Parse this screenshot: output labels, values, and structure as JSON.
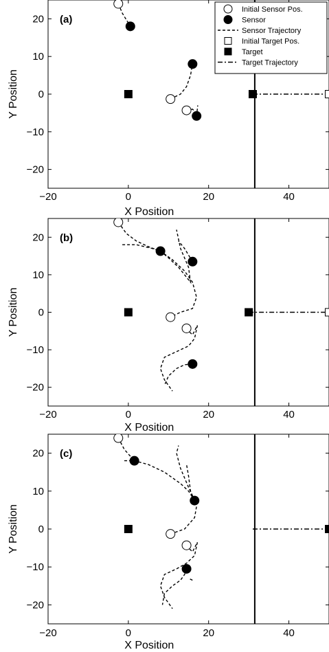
{
  "chart_data": [
    {
      "type": "scatter",
      "panel_label": "(a)",
      "xlabel": "X Position",
      "ylabel": "Y Position",
      "xlim": [
        -20,
        50
      ],
      "ylim": [
        -25,
        25
      ],
      "x_ticks": [
        -20,
        0,
        20,
        40
      ],
      "y_ticks": [
        -20,
        -10,
        0,
        10,
        20
      ],
      "x_tick_labels": [
        "−20",
        "0",
        "20",
        "40"
      ],
      "y_tick_labels": [
        "−20",
        "−10",
        "0",
        "10",
        "20"
      ],
      "vertical_line_x": 31.5,
      "legend": {
        "position": "top-right",
        "entries": [
          "Initial Sensor Pos.",
          "Sensor",
          "Sensor Trajectory",
          "Initial Target Pos.",
          "Target",
          "Target Trajectory"
        ]
      },
      "initial_sensors": [
        [
          -2.5,
          24
        ],
        [
          10.5,
          -1.3
        ],
        [
          14.5,
          -4.3
        ]
      ],
      "sensors": [
        [
          0.5,
          18
        ],
        [
          16,
          8
        ],
        [
          17,
          -5.8
        ]
      ],
      "sensor_trajectories": [
        [
          [
            -2.5,
            24
          ],
          [
            -1.5,
            21.5
          ],
          [
            0.5,
            18
          ]
        ],
        [
          [
            10.5,
            -1.3
          ],
          [
            13,
            0
          ],
          [
            14.5,
            2
          ],
          [
            15.5,
            5
          ],
          [
            16,
            8
          ]
        ],
        [
          [
            14.5,
            -4.3
          ],
          [
            16,
            -4
          ],
          [
            17,
            -5
          ],
          [
            17,
            -5.8
          ],
          [
            17.3,
            -3
          ]
        ]
      ],
      "initial_targets": [
        [
          50,
          0
        ]
      ],
      "targets": [
        [
          0,
          0
        ],
        [
          31,
          0
        ]
      ],
      "target_trajectories": [
        [
          [
            31,
            0
          ],
          [
            50,
            0
          ]
        ]
      ]
    },
    {
      "type": "scatter",
      "panel_label": "(b)",
      "xlabel": "X Position",
      "ylabel": "Y Position",
      "xlim": [
        -20,
        50
      ],
      "ylim": [
        -25,
        25
      ],
      "x_ticks": [
        -20,
        0,
        20,
        40
      ],
      "y_ticks": [
        -20,
        -10,
        0,
        10,
        20
      ],
      "x_tick_labels": [
        "−20",
        "0",
        "20",
        "40"
      ],
      "y_tick_labels": [
        "−20",
        "−10",
        "0",
        "10",
        "20"
      ],
      "vertical_line_x": 31.5,
      "initial_sensors": [
        [
          -2.5,
          24
        ],
        [
          10.5,
          -1.3
        ],
        [
          14.5,
          -4.3
        ]
      ],
      "sensors": [
        [
          8,
          16.3
        ],
        [
          16,
          13.5
        ],
        [
          16,
          -13.8
        ]
      ],
      "sensor_trajectories": [
        [
          [
            -2.5,
            24
          ],
          [
            -0.5,
            21
          ],
          [
            2,
            19
          ],
          [
            5,
            17.5
          ],
          [
            8,
            16.3
          ]
        ],
        [
          [
            -1.5,
            18
          ],
          [
            2,
            18
          ],
          [
            6,
            17
          ],
          [
            8,
            16.3
          ],
          [
            11,
            14
          ],
          [
            14,
            11
          ],
          [
            16,
            8
          ],
          [
            17,
            4
          ],
          [
            16,
            1
          ],
          [
            13,
            0
          ],
          [
            10.5,
            -1.3
          ]
        ],
        [
          [
            8,
            16.3
          ],
          [
            10,
            14.5
          ],
          [
            12.5,
            12
          ],
          [
            14,
            10
          ],
          [
            15.5,
            8
          ],
          [
            15,
            12
          ],
          [
            13,
            17
          ],
          [
            12,
            22
          ]
        ],
        [
          [
            16,
            13.5
          ],
          [
            14,
            17
          ],
          [
            12.5,
            19
          ]
        ],
        [
          [
            14.5,
            -4.3
          ],
          [
            15,
            -5
          ],
          [
            16,
            -6
          ],
          [
            17.2,
            -3.5
          ],
          [
            16.5,
            -7
          ],
          [
            15,
            -9
          ],
          [
            12,
            -10.5
          ],
          [
            9,
            -12
          ],
          [
            8,
            -15
          ],
          [
            9,
            -18
          ],
          [
            11,
            -21
          ]
        ],
        [
          [
            16,
            -13.8
          ],
          [
            14,
            -14
          ],
          [
            12,
            -15
          ],
          [
            10,
            -17
          ],
          [
            9,
            -19.5
          ]
        ]
      ],
      "initial_targets": [
        [
          50,
          0
        ]
      ],
      "targets": [
        [
          0,
          0
        ],
        [
          30,
          0
        ]
      ],
      "target_trajectories": [
        [
          [
            30,
            0
          ],
          [
            50,
            0
          ]
        ]
      ]
    },
    {
      "type": "scatter",
      "panel_label": "(c)",
      "xlabel": "X Position",
      "ylabel": "Y Position",
      "xlim": [
        -20,
        50
      ],
      "ylim": [
        -25,
        25
      ],
      "x_ticks": [
        -20,
        0,
        20,
        40
      ],
      "y_ticks": [
        -20,
        -10,
        0,
        10,
        20
      ],
      "x_tick_labels": [
        "−20",
        "0",
        "20",
        "40"
      ],
      "y_tick_labels": [
        "−20",
        "−10",
        "0",
        "10",
        "20"
      ],
      "vertical_line_x": 31.5,
      "initial_sensors": [
        [
          -2.5,
          24
        ],
        [
          10.5,
          -1.3
        ],
        [
          14.5,
          -4.3
        ]
      ],
      "sensors": [
        [
          1.5,
          18
        ],
        [
          16.5,
          7.5
        ],
        [
          14.5,
          -10.5
        ]
      ],
      "sensor_trajectories": [
        [
          [
            -2.5,
            24
          ],
          [
            -1,
            21
          ],
          [
            1.5,
            18
          ]
        ],
        [
          [
            -1,
            18
          ],
          [
            1.5,
            18
          ],
          [
            5,
            17
          ],
          [
            9,
            15
          ],
          [
            13,
            12
          ],
          [
            15,
            10
          ],
          [
            16.5,
            7.5
          ]
        ],
        [
          [
            10.5,
            -1.3
          ],
          [
            14,
            0
          ],
          [
            16.5,
            3
          ],
          [
            17,
            6
          ],
          [
            16.5,
            7.5
          ]
        ],
        [
          [
            16.5,
            7.5
          ],
          [
            15,
            11
          ],
          [
            13,
            16
          ],
          [
            12,
            20
          ],
          [
            12.5,
            22
          ]
        ],
        [
          [
            16.5,
            7.5
          ],
          [
            15.5,
            10
          ],
          [
            15,
            14
          ],
          [
            14.5,
            17
          ]
        ],
        [
          [
            14.5,
            -4.3
          ],
          [
            15,
            -5
          ],
          [
            16,
            -6
          ],
          [
            17.2,
            -3.5
          ],
          [
            16.5,
            -7
          ],
          [
            14.5,
            -9
          ],
          [
            12,
            -10.5
          ],
          [
            9,
            -12
          ],
          [
            8,
            -15
          ],
          [
            9,
            -18
          ],
          [
            11,
            -21
          ]
        ],
        [
          [
            14.5,
            -10.5
          ],
          [
            14,
            -12
          ],
          [
            13,
            -13.5
          ],
          [
            11,
            -15
          ],
          [
            9,
            -17
          ],
          [
            8.5,
            -20
          ]
        ],
        [
          [
            16,
            -13.5
          ],
          [
            15,
            -13
          ]
        ]
      ],
      "initial_targets": [],
      "targets": [
        [
          0,
          0
        ],
        [
          50,
          0
        ]
      ],
      "target_trajectories": [
        [
          [
            31,
            0
          ],
          [
            50,
            0
          ]
        ]
      ]
    }
  ]
}
